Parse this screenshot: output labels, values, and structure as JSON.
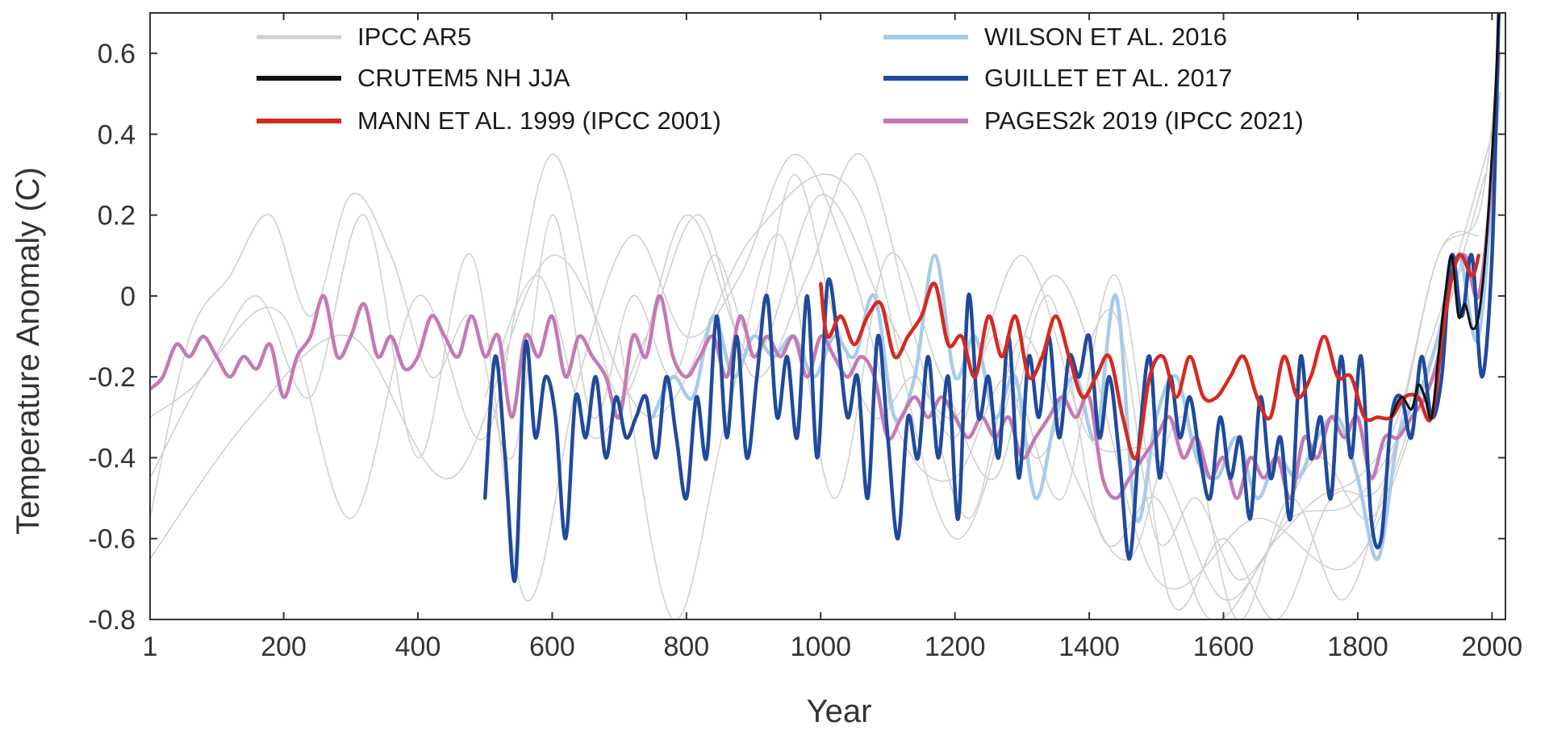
{
  "chart_data": {
    "type": "line",
    "xlabel": "Year",
    "ylabel": "Temperature Anomaly (C)",
    "xlim": [
      1,
      2020
    ],
    "ylim": [
      -0.8,
      0.7
    ],
    "xticks": [
      {
        "value": 1,
        "label": "1"
      },
      {
        "value": 200,
        "label": "200"
      },
      {
        "value": 400,
        "label": "400"
      },
      {
        "value": 600,
        "label": "600"
      },
      {
        "value": 800,
        "label": "800"
      },
      {
        "value": 1000,
        "label": "1000"
      },
      {
        "value": 1200,
        "label": "1200"
      },
      {
        "value": 1400,
        "label": "1400"
      },
      {
        "value": 1600,
        "label": "1600"
      },
      {
        "value": 1800,
        "label": "1800"
      },
      {
        "value": 2000,
        "label": "2000"
      }
    ],
    "yticks": [
      {
        "value": 0.6,
        "label": "0.6"
      },
      {
        "value": 0.4,
        "label": "0.4"
      },
      {
        "value": 0.2,
        "label": "0.2"
      },
      {
        "value": 0,
        "label": "0"
      },
      {
        "value": -0.2,
        "label": "-0.2"
      },
      {
        "value": -0.4,
        "label": "-0.4"
      },
      {
        "value": -0.6,
        "label": "-0.6"
      },
      {
        "value": -0.8,
        "label": "-0.8"
      }
    ],
    "grid": false,
    "legend_position": "top",
    "series": [
      {
        "name": "IPCC AR5",
        "color": "#d0d0d0",
        "width": "thin",
        "legend_col": 0,
        "legend_row": 0,
        "lines": [
          {
            "x": [
              1,
              60,
              120,
              180,
              240,
              300,
              360,
              420,
              480,
              540,
              600,
              660,
              720,
              780,
              840,
              900,
              960,
              1020,
              1080,
              1140,
              1200,
              1260,
              1320,
              1380,
              1440,
              1500,
              1560,
              1620,
              1680,
              1740,
              1800,
              1860,
              1920,
              1980,
              2010
            ],
            "y": [
              -0.55,
              -0.1,
              0.05,
              0.2,
              -0.05,
              0.25,
              0.1,
              -0.2,
              -0.05,
              -0.4,
              0.2,
              -0.3,
              0.0,
              -0.2,
              0.1,
              -0.1,
              0.3,
              -0.05,
              -0.3,
              -0.2,
              -0.35,
              -0.1,
              -0.4,
              -0.2,
              -0.05,
              -0.6,
              -0.5,
              -0.7,
              -0.6,
              -0.5,
              -0.45,
              -0.3,
              0.1,
              0.2,
              0.6
            ]
          },
          {
            "x": [
              1,
              80,
              160,
              240,
              320,
              400,
              480,
              560,
              640,
              720,
              800,
              880,
              960,
              1040,
              1120,
              1200,
              1280,
              1360,
              1440,
              1520,
              1600,
              1680,
              1760,
              1840,
              1920,
              1980
            ],
            "y": [
              -0.3,
              -0.2,
              0.0,
              -0.25,
              0.2,
              -0.4,
              0.1,
              -0.75,
              -0.2,
              0.15,
              -0.1,
              0.05,
              0.35,
              0.1,
              -0.35,
              -0.45,
              -0.2,
              -0.5,
              0.05,
              -0.75,
              -0.6,
              -0.8,
              -0.5,
              -0.45,
              0.1,
              0.15
            ]
          },
          {
            "x": [
              1,
              100,
              200,
              300,
              400,
              500,
              600,
              700,
              800,
              900,
              1000,
              1100,
              1200,
              1300,
              1400,
              1500,
              1600,
              1700,
              1800,
              1900,
              1990
            ],
            "y": [
              -0.45,
              -0.15,
              -0.05,
              -0.55,
              0.0,
              -0.35,
              0.35,
              -0.25,
              0.2,
              -0.15,
              0.25,
              -0.05,
              -0.3,
              0.1,
              -0.35,
              -0.4,
              -0.75,
              -0.55,
              -0.5,
              -0.2,
              0.3
            ]
          },
          {
            "x": [
              500,
              580,
              660,
              740,
              820,
              900,
              980,
              1060,
              1140,
              1220,
              1300,
              1380,
              1460,
              1540,
              1620,
              1700,
              1780,
              1860,
              1940,
              2000
            ],
            "y": [
              -0.25,
              0.05,
              -0.35,
              -0.1,
              0.2,
              -0.2,
              0.05,
              0.35,
              -0.1,
              -0.55,
              -0.1,
              -0.45,
              -0.65,
              -0.3,
              -0.8,
              -0.5,
              -0.75,
              -0.35,
              0.05,
              0.4
            ]
          },
          {
            "x": [
              1,
              150,
              300,
              450,
              600,
              750,
              900,
              1050,
              1200,
              1350,
              1500,
              1650,
              1800,
              1950
            ],
            "y": [
              -0.65,
              -0.3,
              -0.1,
              -0.45,
              0.1,
              -0.3,
              0.15,
              0.25,
              -0.6,
              0.05,
              -0.7,
              -0.55,
              -0.65,
              0.05
            ]
          },
          {
            "x": [
              700,
              780,
              860,
              940,
              1020,
              1100,
              1180,
              1260,
              1340,
              1420,
              1500,
              1580,
              1660,
              1740,
              1820,
              1900,
              1960
            ],
            "y": [
              -0.1,
              -0.8,
              -0.3,
              0.15,
              -0.5,
              0.1,
              -0.2,
              -0.45,
              0.0,
              -0.6,
              -0.5,
              -0.8,
              -0.65,
              -0.4,
              -0.55,
              -0.2,
              0.1
            ]
          }
        ]
      },
      {
        "name": "CRUTEM5 NH JJA",
        "color": "#111111",
        "width": "medium",
        "legend_col": 0,
        "legend_row": 1,
        "x": [
          1850,
          1865,
          1880,
          1890,
          1900,
          1910,
          1920,
          1930,
          1940,
          1950,
          1960,
          1970,
          1980,
          1990,
          2000,
          2005,
          2010
        ],
        "y": [
          -0.3,
          -0.25,
          -0.28,
          -0.22,
          -0.25,
          -0.3,
          -0.15,
          0.0,
          0.1,
          -0.05,
          -0.02,
          -0.08,
          -0.05,
          0.1,
          0.35,
          0.5,
          0.7
        ]
      },
      {
        "name": "MANN ET AL. 1999 (IPCC 2001)",
        "color": "#d42a21",
        "width": "thick",
        "legend_col": 0,
        "legend_row": 2,
        "x": [
          1000,
          1010,
          1030,
          1050,
          1070,
          1090,
          1110,
          1130,
          1150,
          1170,
          1190,
          1210,
          1230,
          1250,
          1270,
          1290,
          1310,
          1330,
          1350,
          1370,
          1390,
          1410,
          1430,
          1450,
          1470,
          1490,
          1510,
          1530,
          1550,
          1570,
          1590,
          1610,
          1630,
          1650,
          1670,
          1690,
          1710,
          1730,
          1750,
          1770,
          1790,
          1810,
          1830,
          1850,
          1870,
          1890,
          1910,
          1930,
          1950,
          1970,
          1980
        ],
        "y": [
          0.03,
          -0.1,
          -0.05,
          -0.12,
          -0.05,
          -0.02,
          -0.15,
          -0.1,
          -0.05,
          0.03,
          -0.12,
          -0.1,
          -0.2,
          -0.05,
          -0.15,
          -0.05,
          -0.2,
          -0.15,
          -0.05,
          -0.15,
          -0.25,
          -0.2,
          -0.15,
          -0.3,
          -0.4,
          -0.2,
          -0.15,
          -0.25,
          -0.15,
          -0.25,
          -0.25,
          -0.2,
          -0.15,
          -0.25,
          -0.3,
          -0.15,
          -0.25,
          -0.2,
          -0.1,
          -0.2,
          -0.2,
          -0.3,
          -0.3,
          -0.3,
          -0.25,
          -0.25,
          -0.3,
          -0.05,
          0.1,
          0.05,
          0.1
        ]
      },
      {
        "name": "WILSON ET AL. 2016",
        "color": "#a8cbea",
        "width": "thick",
        "legend_col": 1,
        "legend_row": 0,
        "x": [
          750,
          780,
          810,
          840,
          870,
          900,
          930,
          960,
          990,
          1020,
          1050,
          1080,
          1110,
          1140,
          1170,
          1200,
          1230,
          1260,
          1290,
          1320,
          1350,
          1380,
          1410,
          1440,
          1470,
          1500,
          1530,
          1560,
          1590,
          1620,
          1650,
          1680,
          1710,
          1740,
          1770,
          1800,
          1830,
          1860,
          1890,
          1920,
          1950,
          1980,
          2010
        ],
        "y": [
          -0.3,
          -0.2,
          -0.25,
          -0.05,
          -0.2,
          -0.1,
          -0.15,
          -0.1,
          -0.2,
          -0.1,
          -0.15,
          0.0,
          -0.3,
          -0.2,
          0.1,
          -0.2,
          -0.1,
          -0.3,
          -0.2,
          -0.5,
          -0.3,
          -0.2,
          -0.35,
          0.0,
          -0.55,
          -0.3,
          -0.2,
          -0.4,
          -0.45,
          -0.35,
          -0.5,
          -0.4,
          -0.45,
          -0.35,
          -0.3,
          -0.45,
          -0.65,
          -0.35,
          -0.25,
          -0.1,
          0.1,
          -0.1,
          0.5
        ]
      },
      {
        "name": "GUILLET ET AL. 2017",
        "color": "#1f4a9c",
        "width": "thick",
        "legend_col": 1,
        "legend_row": 1,
        "x": [
          500,
          515,
          530,
          545,
          560,
          575,
          590,
          605,
          620,
          635,
          650,
          665,
          680,
          695,
          710,
          725,
          740,
          755,
          770,
          785,
          800,
          815,
          830,
          845,
          860,
          875,
          890,
          905,
          920,
          935,
          950,
          965,
          980,
          995,
          1010,
          1025,
          1040,
          1055,
          1070,
          1085,
          1100,
          1115,
          1130,
          1145,
          1160,
          1175,
          1190,
          1205,
          1220,
          1235,
          1250,
          1265,
          1280,
          1295,
          1310,
          1325,
          1340,
          1355,
          1370,
          1385,
          1400,
          1415,
          1430,
          1445,
          1460,
          1475,
          1490,
          1505,
          1520,
          1535,
          1550,
          1565,
          1580,
          1595,
          1610,
          1625,
          1640,
          1655,
          1670,
          1685,
          1700,
          1715,
          1730,
          1745,
          1760,
          1775,
          1790,
          1805,
          1820,
          1835,
          1850,
          1865,
          1880,
          1895,
          1910,
          1925,
          1940,
          1955,
          1970,
          1985,
          2000,
          2010
        ],
        "y": [
          -0.5,
          -0.15,
          -0.4,
          -0.7,
          -0.12,
          -0.35,
          -0.2,
          -0.3,
          -0.6,
          -0.25,
          -0.35,
          -0.2,
          -0.4,
          -0.25,
          -0.35,
          -0.3,
          -0.25,
          -0.4,
          -0.2,
          -0.35,
          -0.5,
          -0.25,
          -0.4,
          -0.05,
          -0.35,
          -0.1,
          -0.4,
          -0.2,
          0.0,
          -0.3,
          -0.15,
          -0.35,
          0.0,
          -0.4,
          0.03,
          -0.1,
          -0.3,
          -0.2,
          -0.5,
          -0.1,
          -0.35,
          -0.6,
          -0.3,
          -0.4,
          -0.15,
          -0.4,
          -0.2,
          -0.55,
          0.0,
          -0.3,
          -0.2,
          -0.4,
          -0.1,
          -0.45,
          -0.15,
          -0.3,
          -0.1,
          -0.35,
          -0.15,
          -0.2,
          -0.1,
          -0.35,
          -0.2,
          -0.4,
          -0.65,
          -0.35,
          -0.15,
          -0.45,
          -0.2,
          -0.35,
          -0.25,
          -0.4,
          -0.5,
          -0.3,
          -0.45,
          -0.35,
          -0.55,
          -0.25,
          -0.45,
          -0.35,
          -0.55,
          -0.15,
          -0.4,
          -0.3,
          -0.5,
          -0.15,
          -0.4,
          -0.15,
          -0.55,
          -0.6,
          -0.3,
          -0.25,
          -0.35,
          -0.15,
          -0.3,
          -0.2,
          0.1,
          -0.05,
          0.1,
          -0.2,
          0.1,
          0.7
        ]
      },
      {
        "name": "PAGES2k 2019 (IPCC 2021)",
        "color": "#c479b5",
        "width": "thick",
        "legend_col": 1,
        "legend_row": 2,
        "x": [
          1,
          20,
          40,
          60,
          80,
          100,
          120,
          140,
          160,
          180,
          200,
          220,
          240,
          260,
          280,
          300,
          320,
          340,
          360,
          380,
          400,
          420,
          440,
          460,
          480,
          500,
          520,
          540,
          560,
          580,
          600,
          620,
          640,
          660,
          680,
          700,
          720,
          740,
          760,
          780,
          800,
          820,
          840,
          860,
          880,
          900,
          920,
          940,
          960,
          980,
          1000,
          1020,
          1040,
          1060,
          1080,
          1100,
          1120,
          1140,
          1160,
          1180,
          1200,
          1220,
          1240,
          1260,
          1280,
          1300,
          1320,
          1340,
          1360,
          1380,
          1400,
          1420,
          1440,
          1460,
          1480,
          1500,
          1520,
          1540,
          1560,
          1580,
          1600,
          1620,
          1640,
          1660,
          1680,
          1700,
          1720,
          1740,
          1760,
          1780,
          1800,
          1820,
          1840,
          1860,
          1880,
          1900,
          1920,
          1940,
          1960,
          1980,
          2000,
          2010
        ],
        "y": [
          -0.23,
          -0.2,
          -0.12,
          -0.15,
          -0.1,
          -0.15,
          -0.2,
          -0.15,
          -0.18,
          -0.12,
          -0.25,
          -0.15,
          -0.1,
          0.0,
          -0.15,
          -0.1,
          -0.02,
          -0.15,
          -0.1,
          -0.18,
          -0.15,
          -0.05,
          -0.1,
          -0.15,
          -0.05,
          -0.15,
          -0.1,
          -0.3,
          -0.1,
          -0.15,
          -0.05,
          -0.2,
          -0.1,
          -0.15,
          -0.2,
          -0.3,
          -0.1,
          -0.15,
          0.0,
          -0.15,
          -0.2,
          -0.15,
          -0.1,
          -0.2,
          -0.05,
          -0.15,
          -0.1,
          -0.15,
          -0.1,
          -0.2,
          -0.1,
          -0.15,
          -0.2,
          -0.15,
          -0.2,
          -0.35,
          -0.3,
          -0.25,
          -0.3,
          -0.25,
          -0.3,
          -0.35,
          -0.3,
          -0.35,
          -0.3,
          -0.4,
          -0.35,
          -0.3,
          -0.25,
          -0.3,
          -0.25,
          -0.45,
          -0.5,
          -0.45,
          -0.4,
          -0.35,
          -0.3,
          -0.4,
          -0.35,
          -0.45,
          -0.4,
          -0.5,
          -0.4,
          -0.45,
          -0.4,
          -0.5,
          -0.35,
          -0.4,
          -0.3,
          -0.35,
          -0.3,
          -0.45,
          -0.35,
          -0.35,
          -0.3,
          -0.25,
          -0.15,
          0.05,
          0.1,
          0.0,
          0.3,
          0.6
        ]
      }
    ]
  }
}
